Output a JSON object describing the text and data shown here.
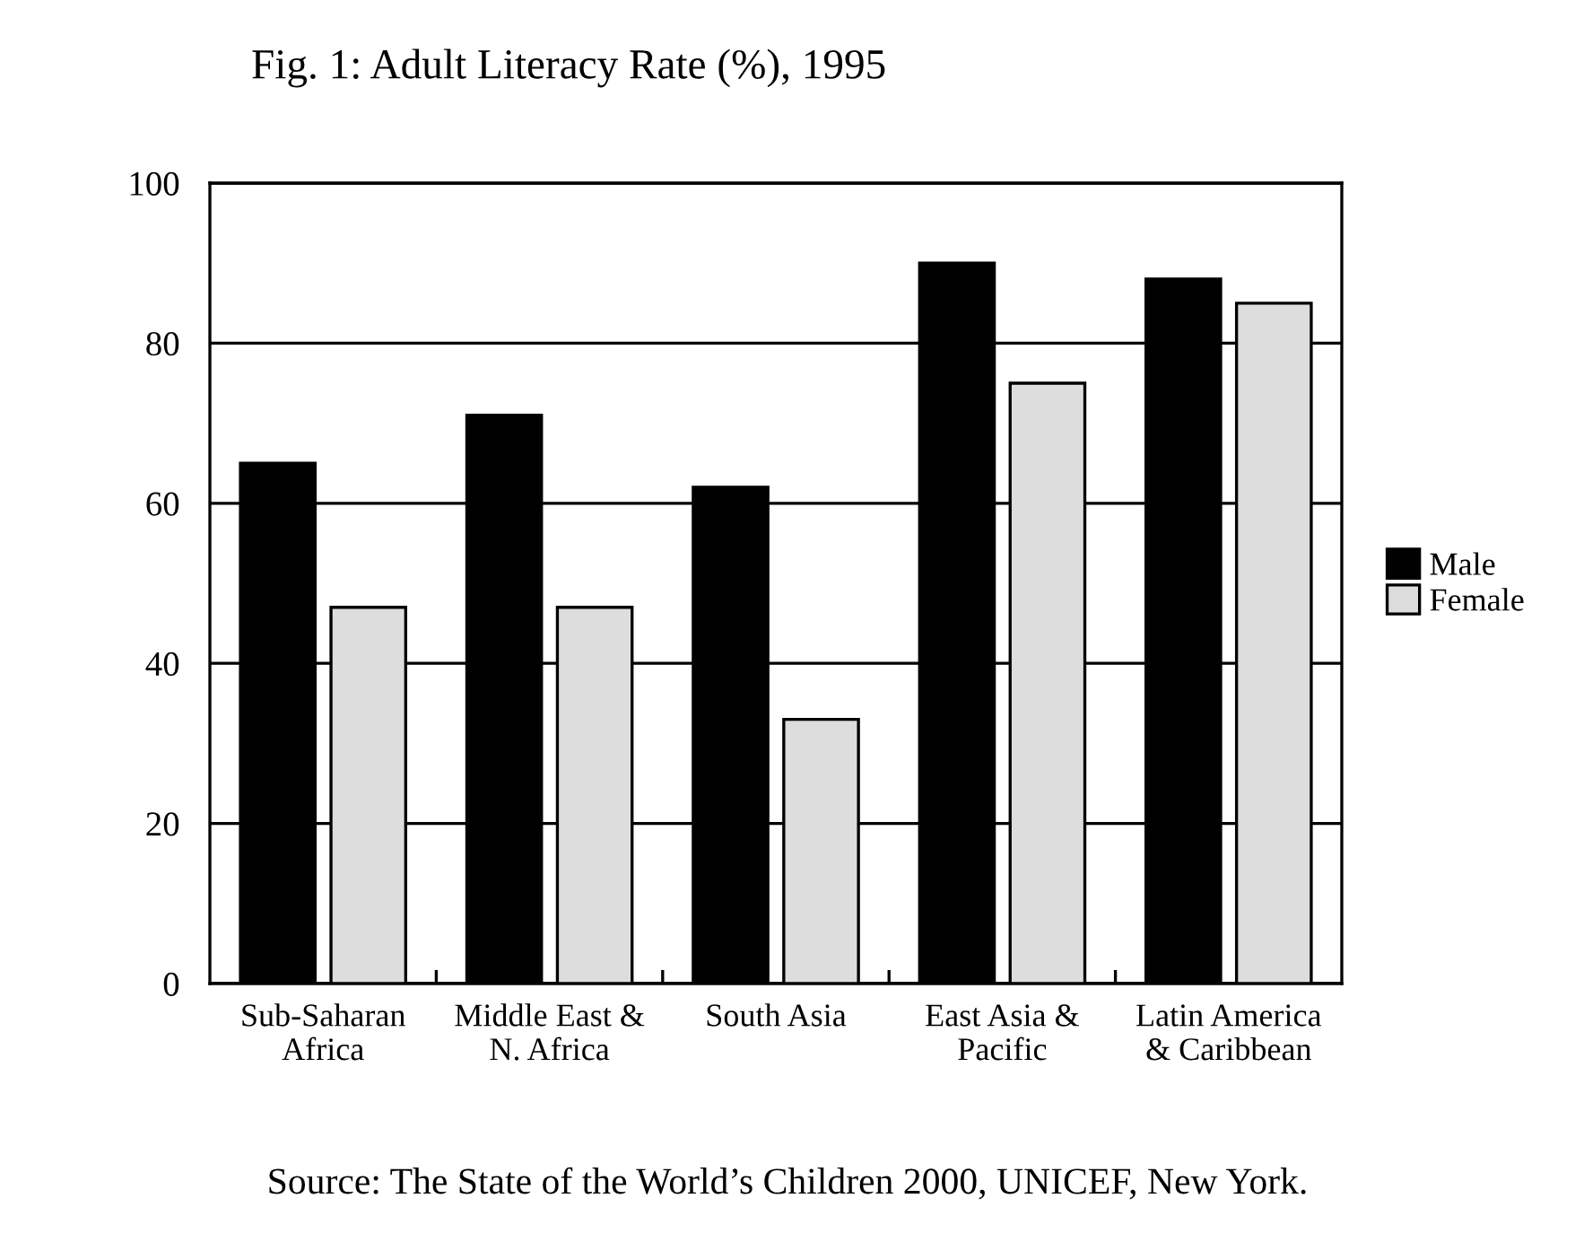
{
  "chart_data": {
    "type": "bar",
    "title": "Fig. 1: Adult Literacy Rate (%), 1995",
    "categories": [
      "Sub-Saharan\nAfrica",
      "Middle East &\nN. Africa",
      "South Asia",
      "East Asia &\nPacific",
      "Latin America\n& Caribbean"
    ],
    "series": [
      {
        "name": "Male",
        "color": "#000000",
        "values": [
          65,
          71,
          62,
          90,
          88
        ]
      },
      {
        "name": "Female",
        "color": "#dddddd",
        "values": [
          47,
          47,
          33,
          75,
          85
        ]
      }
    ],
    "ylim": [
      0,
      100
    ],
    "yticks": [
      0,
      20,
      40,
      60,
      80,
      100
    ],
    "grid": "y",
    "legend": "right",
    "annotations": [
      "Source: The State of the World’s Children 2000, UNICEF, New York."
    ]
  }
}
